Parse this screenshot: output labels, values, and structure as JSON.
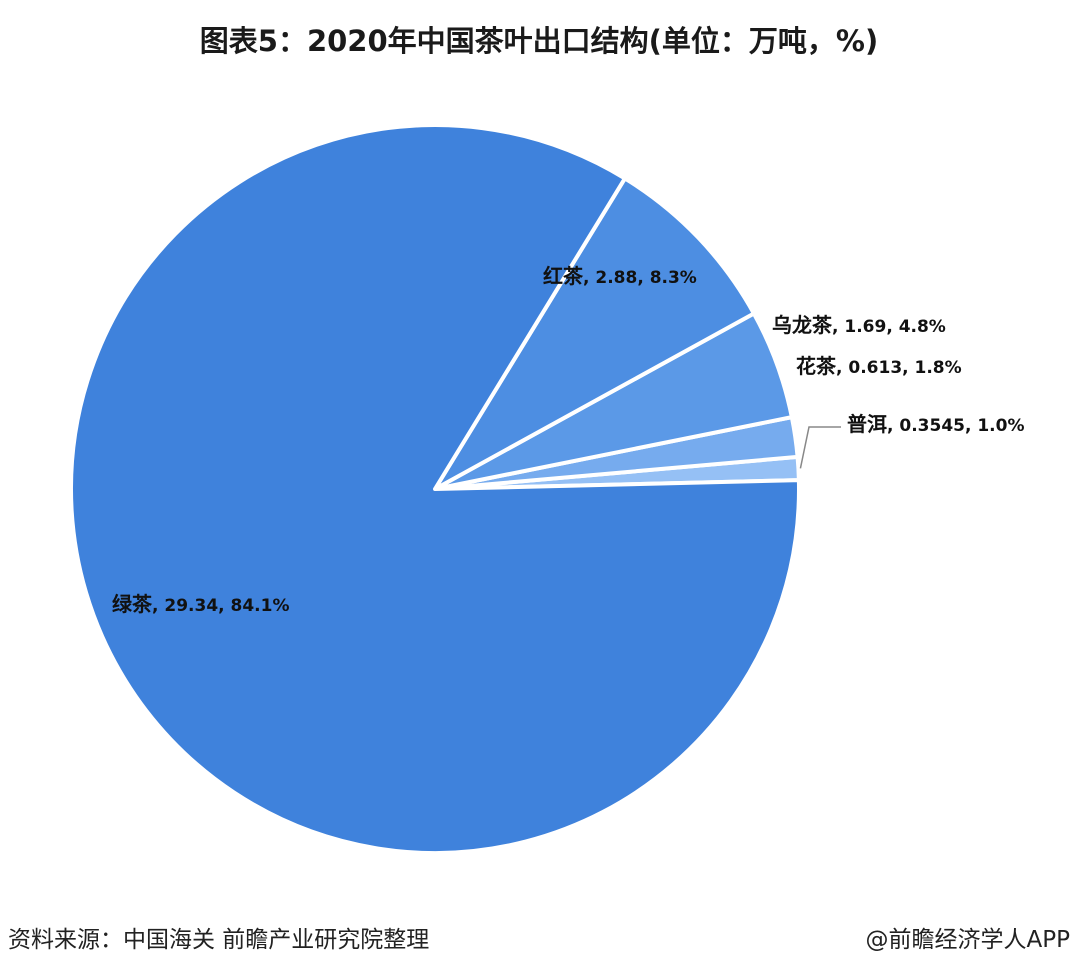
{
  "title": "图表5：2020年中国茶叶出口结构(单位：万吨，%)",
  "chart_data": {
    "type": "pie",
    "title": "图表5：2020年中国茶叶出口结构(单位：万吨，%)",
    "slices": [
      {
        "name": "绿茶",
        "value": 29.34,
        "value_label": "29.34",
        "percent_label": "84.1%",
        "percent": 84.1,
        "color": "#3f82dc"
      },
      {
        "name": "红茶",
        "value": 2.88,
        "value_label": "2.88",
        "percent_label": "8.3%",
        "percent": 8.3,
        "color": "#4d8ee2"
      },
      {
        "name": "乌龙茶",
        "value": 1.69,
        "value_label": "1.69",
        "percent_label": "4.8%",
        "percent": 4.8,
        "color": "#5b99e7"
      },
      {
        "name": "花茶",
        "value": 0.613,
        "value_label": "0.613",
        "percent_label": "1.8%",
        "percent": 1.8,
        "color": "#76abee"
      },
      {
        "name": "普洱",
        "value": 0.3545,
        "value_label": "0.3545",
        "percent_label": "1.0%",
        "percent": 1.0,
        "color": "#95c0f5"
      }
    ],
    "legend": "none"
  },
  "footer": {
    "source": "资料来源：中国海关 前瞻产业研究院整理",
    "credit": "@前瞻经济学人APP"
  }
}
